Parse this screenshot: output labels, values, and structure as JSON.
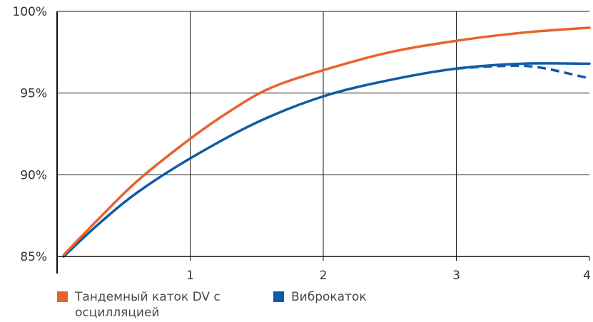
{
  "chart_data": {
    "type": "line",
    "title": "",
    "xlabel": "",
    "ylabel": "",
    "xlim": [
      0,
      4
    ],
    "ylim": [
      85,
      100
    ],
    "x_ticks": [
      {
        "value": 1,
        "label": "1"
      },
      {
        "value": 2,
        "label": "2"
      },
      {
        "value": 3,
        "label": "3"
      },
      {
        "value": 4,
        "label": "4"
      }
    ],
    "y_ticks": [
      {
        "value": 85,
        "label": "85%"
      },
      {
        "value": 90,
        "label": "90%"
      },
      {
        "value": 95,
        "label": "95%"
      },
      {
        "value": 100,
        "label": "100%"
      }
    ],
    "grid": true,
    "legend_position": "bottom-left",
    "series": [
      {
        "name": "Тандемный каток DV с осцилляцией",
        "color": "#E8632B",
        "style": "solid",
        "points": [
          [
            0.05,
            85.1
          ],
          [
            0.3,
            87.2
          ],
          [
            0.6,
            89.6
          ],
          [
            1.0,
            92.2
          ],
          [
            1.3,
            93.9
          ],
          [
            1.6,
            95.3
          ],
          [
            2.0,
            96.4
          ],
          [
            2.5,
            97.5
          ],
          [
            3.0,
            98.2
          ],
          [
            3.5,
            98.7
          ],
          [
            4.0,
            99.0
          ]
        ]
      },
      {
        "name": "Виброкаток",
        "color": "#0F5BA7",
        "style": "solid",
        "points": [
          [
            0.05,
            85.0
          ],
          [
            0.3,
            86.9
          ],
          [
            0.6,
            88.9
          ],
          [
            1.0,
            91.0
          ],
          [
            1.5,
            93.2
          ],
          [
            2.0,
            94.8
          ],
          [
            2.5,
            95.8
          ],
          [
            3.0,
            96.5
          ],
          [
            3.5,
            96.8
          ],
          [
            4.0,
            96.8
          ]
        ]
      },
      {
        "name": "",
        "color": "#0F5BA7",
        "style": "dashed",
        "points": [
          [
            3.0,
            96.5
          ],
          [
            3.3,
            96.65
          ],
          [
            3.6,
            96.6
          ],
          [
            4.0,
            95.9
          ]
        ]
      }
    ]
  }
}
